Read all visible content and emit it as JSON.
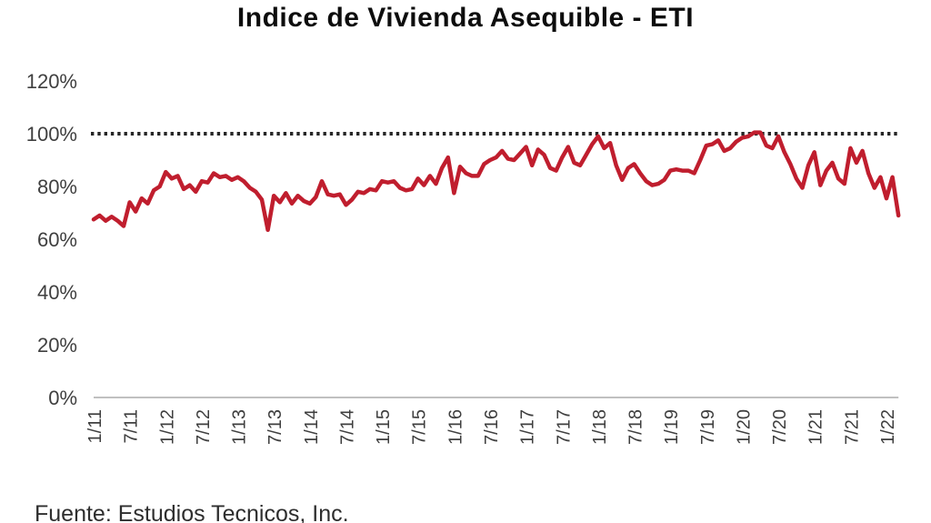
{
  "title": "Indice de Vivienda Asequible - ETI",
  "source": "Fuente: Estudios Tecnicos, Inc.",
  "colors": {
    "line": "#c01e2e",
    "reference_dotted": "#262626",
    "axis_line": "#c0c0c0",
    "tick_label": "#3f3f3f",
    "title_text": "#0d0d0d"
  },
  "chart_data": {
    "type": "line",
    "title": "Indice de Vivienda Asequible - ETI",
    "series_name": "ETI - Indice de Vivienda Asequible",
    "unit": "%",
    "frequency": "monthly",
    "start_month": "1/11",
    "end_month": "3/22",
    "ylim": [
      0,
      120
    ],
    "y_ticks": [
      0,
      20,
      40,
      60,
      80,
      100,
      120
    ],
    "y_tick_labels": [
      "0%",
      "20%",
      "40%",
      "60%",
      "80%",
      "100%",
      "120%"
    ],
    "reference_line": 100,
    "grid": "off",
    "legend": "none",
    "x_tick_every_months": 6,
    "x_tick_labels": [
      "1/11",
      "7/11",
      "1/12",
      "7/12",
      "1/13",
      "7/13",
      "1/14",
      "7/14",
      "1/15",
      "7/15",
      "1/16",
      "7/16",
      "1/17",
      "7/17",
      "1/18",
      "7/18",
      "1/19",
      "7/19",
      "1/20",
      "7/20",
      "1/21",
      "7/21",
      "1/22"
    ],
    "values": [
      67.5,
      69,
      67,
      68.5,
      67,
      65,
      74,
      70.5,
      75.5,
      73.5,
      78.5,
      80,
      85.5,
      83,
      84,
      79,
      80.5,
      78,
      82,
      81.5,
      85,
      83.5,
      84,
      82.5,
      83.5,
      82,
      79.5,
      78,
      75,
      63.5,
      76.5,
      74,
      77.5,
      73.5,
      76.5,
      74.5,
      73.5,
      76,
      82,
      77,
      76.5,
      77,
      73,
      75,
      78,
      77.5,
      79,
      78.5,
      82,
      81.5,
      82,
      79.5,
      78.5,
      79,
      83,
      80.5,
      84,
      81,
      87,
      91,
      77.5,
      87.5,
      85,
      84,
      84,
      88.5,
      90,
      91,
      93.5,
      90.5,
      90,
      92.5,
      95,
      88,
      94,
      92,
      87,
      86,
      91,
      95,
      89,
      88,
      92,
      96,
      99,
      94.5,
      96.5,
      88,
      82.5,
      87,
      88.5,
      85,
      82,
      80.5,
      81,
      82.5,
      86,
      86.5,
      86,
      86,
      85,
      90,
      95.5,
      96,
      97.5,
      93.5,
      94.5,
      97,
      98.5,
      99,
      100.5,
      100.5,
      95.5,
      94.5,
      99,
      93,
      88.5,
      83,
      79.5,
      88,
      93,
      80.5,
      86,
      89,
      83,
      81,
      94.5,
      89,
      93.5,
      85,
      79.5,
      83.5,
      75.5,
      83.5,
      69
    ]
  }
}
